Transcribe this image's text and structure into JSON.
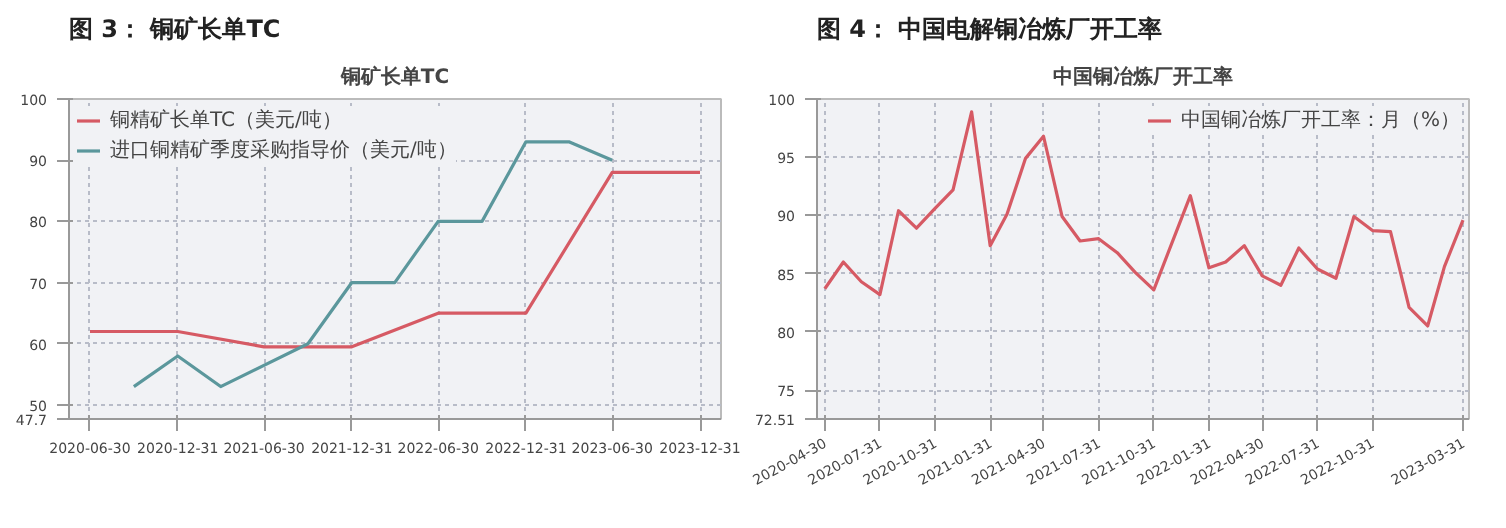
{
  "chart_data": [
    {
      "type": "line",
      "title": "图 3：  铜矿长单TC",
      "subtitle": "铜矿长单TC",
      "xlim": [
        "2020-05-17",
        "2024-02-13"
      ],
      "ylim": [
        47.7,
        100
      ],
      "xticks": [
        "2020-06-30",
        "2020-12-31",
        "2021-06-30",
        "2021-12-31",
        "2022-06-30",
        "2022-12-31",
        "2023-06-30",
        "2023-12-31"
      ],
      "yticks": [
        {
          "value": 47.7,
          "label": "47.7"
        },
        50,
        60,
        70,
        80,
        90,
        100
      ],
      "grid": true,
      "legend": "top left",
      "series": [
        {
          "name": "铜精矿长单TC（美元/吨）",
          "color": "#d65a64",
          "x": [
            "2020-06-30",
            "2020-12-31",
            "2021-06-30",
            "2021-12-31",
            "2022-06-30",
            "2022-12-31",
            "2023-06-30",
            "2023-12-31"
          ],
          "values": [
            62,
            62,
            59.5,
            59.5,
            65,
            65,
            88,
            88
          ]
        },
        {
          "name": "进口铜精矿季度采购指导价（美元/吨）",
          "color": "#5b979c",
          "x": [
            "2020-09-30",
            "2020-12-31",
            "2021-03-31",
            "2021-09-30",
            "2021-12-31",
            "2022-03-31",
            "2022-06-30",
            "2022-09-30",
            "2022-12-31",
            "2023-03-31",
            "2023-06-30"
          ],
          "values": [
            53,
            58,
            53,
            60,
            70,
            70,
            80,
            80,
            93,
            93,
            90
          ]
        }
      ]
    },
    {
      "type": "line",
      "title": "图 4：  中国电解铜冶炼厂开工率",
      "subtitle": "中国铜冶炼厂开工率",
      "xlim": [
        "2020-04-17",
        "2023-04-10"
      ],
      "ylim": [
        72.51,
        100
      ],
      "xticks": [
        "2020-04-30",
        "2020-07-31",
        "2020-10-31",
        "2021-01-31",
        "2021-04-30",
        "2021-07-31",
        "2021-10-31",
        "2022-01-31",
        "2022-04-30",
        "2022-07-31",
        "2022-10-31",
        "2023-03-31"
      ],
      "yticks": [
        {
          "value": 72.51,
          "label": "72.51"
        },
        75,
        80,
        85,
        90,
        95,
        100
      ],
      "grid": true,
      "legend": "top right",
      "x": [
        "2020-04-30",
        "2020-05-31",
        "2020-06-30",
        "2020-07-31",
        "2020-08-31",
        "2020-09-30",
        "2020-10-31",
        "2020-11-30",
        "2020-12-31",
        "2021-01-31",
        "2021-02-28",
        "2021-03-31",
        "2021-04-30",
        "2021-05-31",
        "2021-06-30",
        "2021-07-31",
        "2021-08-31",
        "2021-09-30",
        "2021-10-31",
        "2021-11-30",
        "2021-12-31",
        "2022-01-31",
        "2022-02-28",
        "2022-03-31",
        "2022-04-30",
        "2022-05-31",
        "2022-06-30",
        "2022-07-31",
        "2022-08-31",
        "2022-09-30",
        "2022-10-31",
        "2022-11-30",
        "2022-12-31",
        "2023-01-31",
        "2023-02-28",
        "2023-03-31"
      ],
      "series": [
        {
          "name": "中国铜冶炼厂开工率：月（%）",
          "color": "#d65a64",
          "values": [
            83.7,
            86.0,
            84.3,
            83.2,
            90.4,
            88.9,
            90.6,
            92.2,
            98.9,
            87.4,
            90.1,
            94.9,
            96.8,
            89.9,
            87.8,
            88.0,
            86.8,
            85.1,
            83.6,
            87.6,
            91.7,
            85.5,
            86.0,
            87.4,
            84.8,
            84.0,
            87.2,
            85.4,
            84.6,
            89.9,
            88.7,
            88.6,
            82.1,
            80.5,
            85.6,
            89.6
          ]
        }
      ]
    }
  ]
}
